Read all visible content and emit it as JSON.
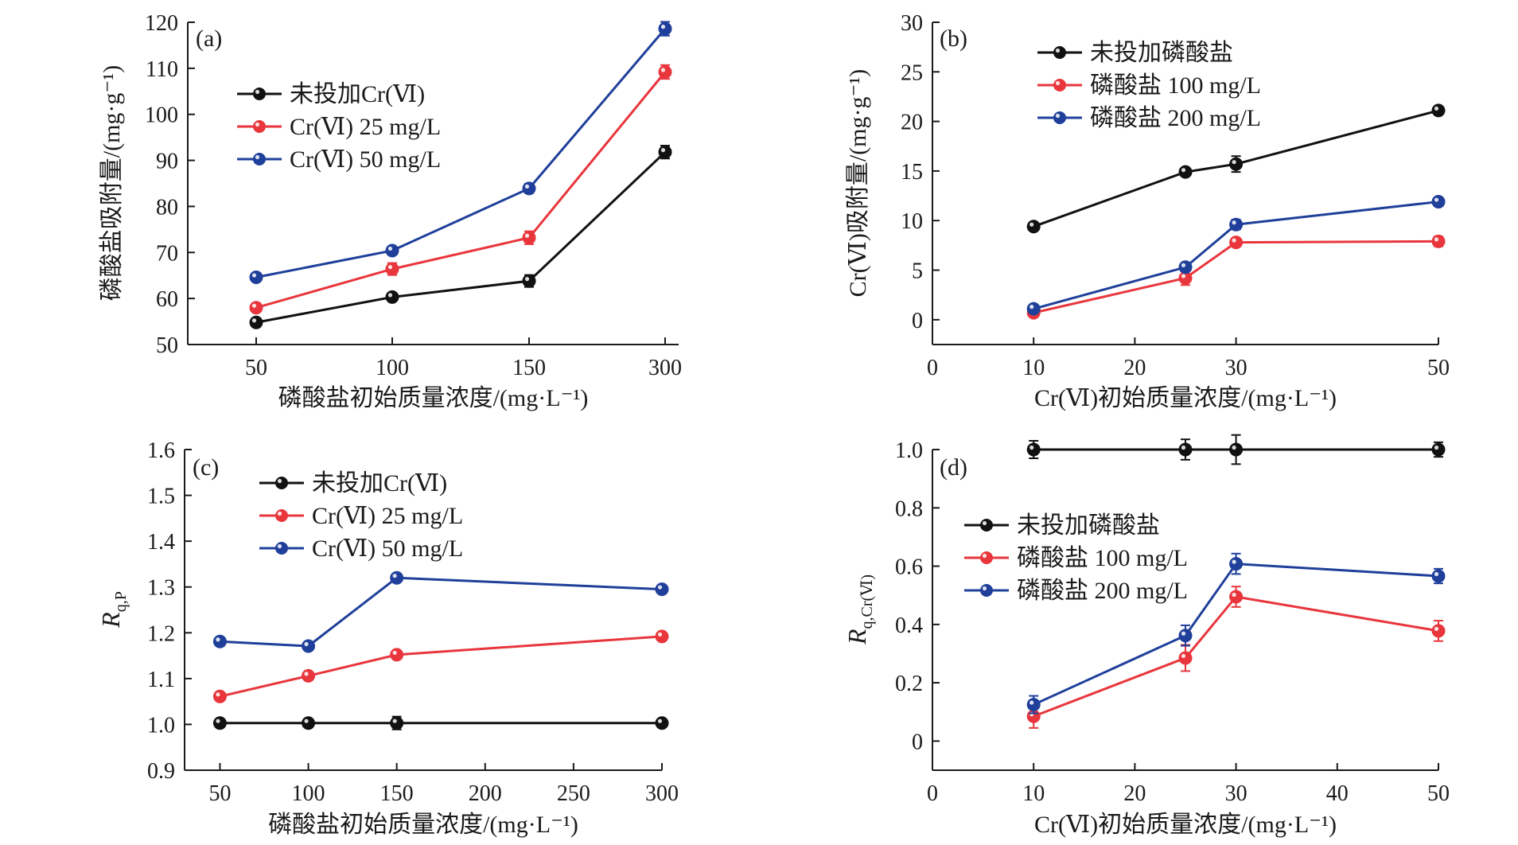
{
  "colors": {
    "black": "#111111",
    "red": "#e8363c",
    "blue": "#1f3f9a",
    "axis": "#1a1a1a"
  },
  "chart_data": [
    {
      "id": "a",
      "type": "line",
      "panel_label": "(a)",
      "xlabel": "磷酸盐初始质量浓度/(mg·L⁻¹)",
      "ylabel": "磷酸盐吸附量/(mg·g⁻¹)",
      "x_scale": "categorical",
      "categories": [
        "50",
        "100",
        "150",
        "300"
      ],
      "ylim": [
        50,
        120
      ],
      "yticks": [
        50,
        60,
        70,
        80,
        90,
        100,
        110,
        120
      ],
      "legend_position": "upper-left",
      "series": [
        {
          "name": "未投加Cr(Ⅵ)",
          "color": "black",
          "x": [
            "50",
            "100",
            "150",
            "300"
          ],
          "values": [
            54.8,
            60.3,
            63.8,
            91.8
          ],
          "errors": [
            0.6,
            0.6,
            1.3,
            1.4
          ]
        },
        {
          "name": "Cr(Ⅵ) 25 mg/L",
          "color": "red",
          "x": [
            "50",
            "100",
            "150",
            "300"
          ],
          "values": [
            58.0,
            66.4,
            73.2,
            109.2
          ],
          "errors": [
            0.8,
            1.3,
            1.4,
            1.5
          ]
        },
        {
          "name": "Cr(Ⅵ) 50 mg/L",
          "color": "blue",
          "x": [
            "50",
            "100",
            "150",
            "300"
          ],
          "values": [
            64.6,
            70.4,
            83.9,
            118.6
          ],
          "errors": [
            0.5,
            0.6,
            1.0,
            1.5
          ]
        }
      ]
    },
    {
      "id": "b",
      "type": "line",
      "panel_label": "(b)",
      "xlabel": "Cr(Ⅵ)初始质量浓度/(mg·L⁻¹)",
      "ylabel": "Cr(Ⅵ)吸附量/(mg·g⁻¹)",
      "x_scale": "numeric",
      "xlim": [
        0,
        50
      ],
      "xticks": [
        "0",
        "10",
        "20",
        "30",
        "50"
      ],
      "xtick_values": [
        0,
        10,
        20,
        30,
        50
      ],
      "ylim": [
        -2.5,
        30
      ],
      "yticks": [
        0,
        5,
        10,
        15,
        20,
        25,
        30
      ],
      "legend_position": "upper-left",
      "series": [
        {
          "name": "未投加磷酸盐",
          "color": "black",
          "x": [
            10,
            25,
            30,
            50
          ],
          "values": [
            9.4,
            14.9,
            15.7,
            21.1
          ],
          "errors": [
            0.2,
            0.4,
            0.8,
            0.3
          ]
        },
        {
          "name": "磷酸盐 100 mg/L",
          "color": "red",
          "x": [
            10,
            25,
            30,
            50
          ],
          "values": [
            0.7,
            4.2,
            7.8,
            7.9
          ],
          "errors": [
            0.3,
            0.7,
            0.4,
            0.5
          ]
        },
        {
          "name": "磷酸盐 200 mg/L",
          "color": "blue",
          "x": [
            10,
            25,
            30,
            50
          ],
          "values": [
            1.1,
            5.3,
            9.6,
            11.9
          ],
          "errors": [
            0.3,
            0.4,
            0.5,
            0.3
          ]
        }
      ]
    },
    {
      "id": "c",
      "type": "line",
      "panel_label": "(c)",
      "xlabel": "磷酸盐初始质量浓度/(mg·L⁻¹)",
      "ylabel_main": "R",
      "ylabel_sub": "q,P",
      "x_scale": "numeric",
      "xlim": [
        30,
        300
      ],
      "xticks": [
        "50",
        "100",
        "150",
        "200",
        "250",
        "300"
      ],
      "xtick_values": [
        50,
        100,
        150,
        200,
        250,
        300
      ],
      "ylim": [
        0.9,
        1.6
      ],
      "yticks": [
        0.9,
        1.0,
        1.1,
        1.2,
        1.3,
        1.4,
        1.5,
        1.6
      ],
      "legend_position": "upper-left",
      "series": [
        {
          "name": "未投加Cr(Ⅵ)",
          "color": "black",
          "x": [
            50,
            100,
            150,
            300
          ],
          "values": [
            1.003,
            1.003,
            1.003,
            1.003
          ],
          "errors": [
            0.004,
            0.004,
            0.014,
            0.004
          ]
        },
        {
          "name": "Cr(Ⅵ) 25 mg/L",
          "color": "red",
          "x": [
            50,
            100,
            150,
            300
          ],
          "values": [
            1.061,
            1.106,
            1.152,
            1.192
          ],
          "errors": [
            0.004,
            0.004,
            0.005,
            0.004
          ]
        },
        {
          "name": "Cr(Ⅵ) 50 mg/L",
          "color": "blue",
          "x": [
            50,
            100,
            150,
            300
          ],
          "values": [
            1.181,
            1.171,
            1.32,
            1.295
          ],
          "errors": [
            0.004,
            0.004,
            0.004,
            0.004
          ]
        }
      ]
    },
    {
      "id": "d",
      "type": "line",
      "panel_label": "(d)",
      "xlabel": "Cr(Ⅵ)初始质量浓度/(mg·L⁻¹)",
      "ylabel_main": "R",
      "ylabel_sub": "q,Cr(Ⅵ)",
      "x_scale": "numeric",
      "xlim": [
        0,
        50
      ],
      "xticks": [
        "0",
        "10",
        "20",
        "30",
        "40",
        "50"
      ],
      "xtick_values": [
        0,
        10,
        20,
        30,
        40,
        50
      ],
      "ylim": [
        -0.1,
        1.0
      ],
      "yticks": [
        0,
        0.2,
        0.4,
        0.6,
        0.8,
        1.0
      ],
      "legend_position": "middle-left",
      "series": [
        {
          "name": "未投加磷酸盐",
          "color": "black",
          "x": [
            10,
            25,
            30,
            50
          ],
          "values": [
            1.0,
            1.0,
            1.0,
            1.0
          ],
          "errors": [
            0.03,
            0.035,
            0.05,
            0.025
          ]
        },
        {
          "name": "磷酸盐 100 mg/L",
          "color": "red",
          "x": [
            10,
            25,
            30,
            50
          ],
          "values": [
            0.085,
            0.285,
            0.495,
            0.378
          ],
          "errors": [
            0.04,
            0.045,
            0.035,
            0.035
          ]
        },
        {
          "name": "磷酸盐 200 mg/L",
          "color": "blue",
          "x": [
            10,
            25,
            30,
            50
          ],
          "values": [
            0.125,
            0.362,
            0.608,
            0.566
          ],
          "errors": [
            0.03,
            0.035,
            0.035,
            0.025
          ]
        }
      ]
    }
  ]
}
